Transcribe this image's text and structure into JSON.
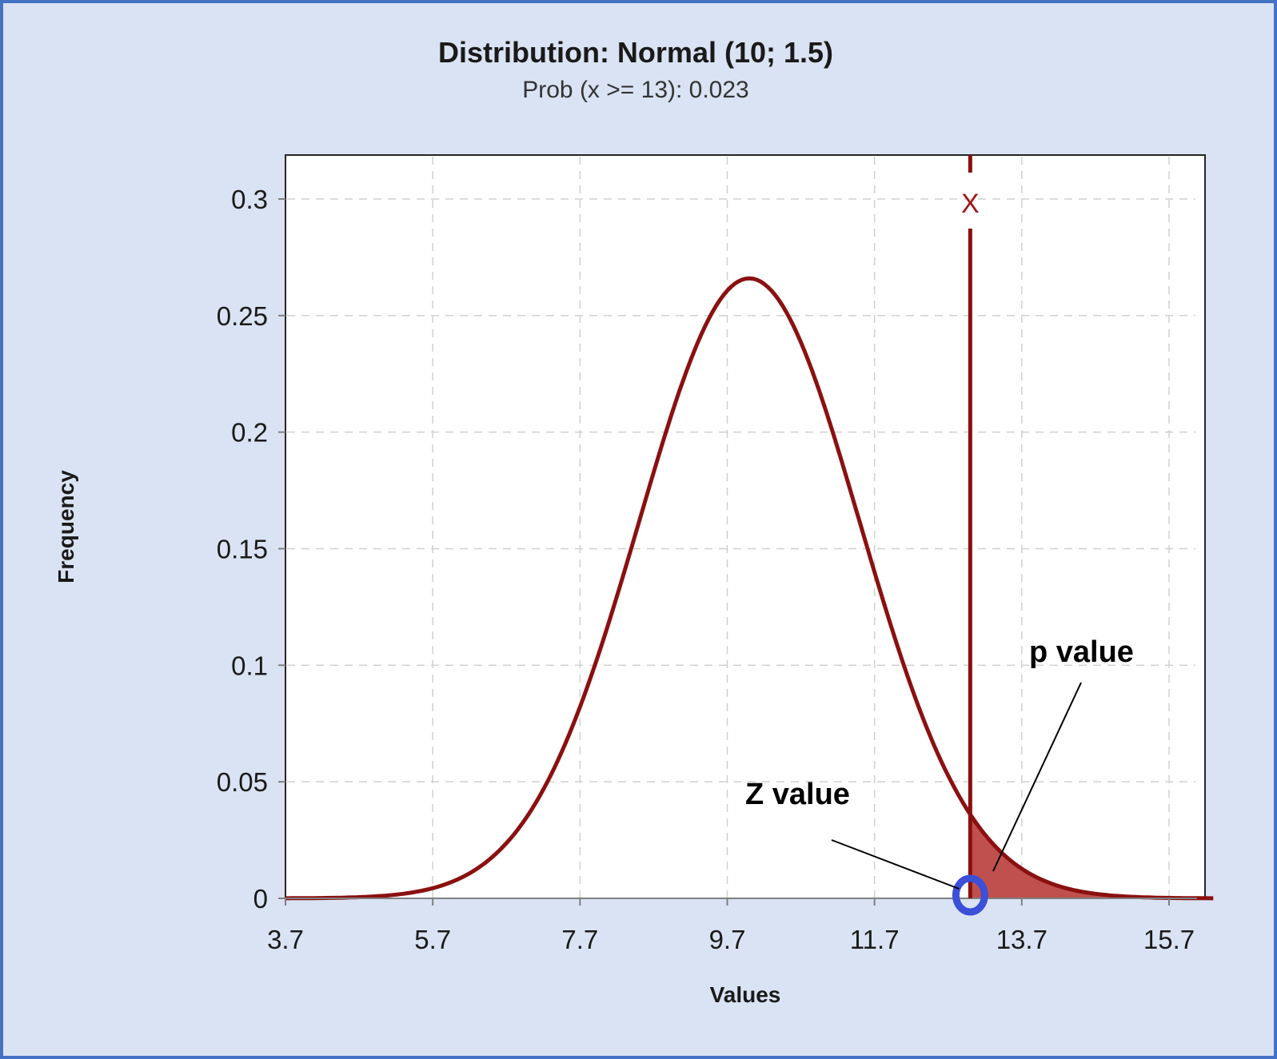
{
  "chart_data": {
    "type": "line",
    "title": "Distribution:  Normal (10; 1.5)",
    "subtitle": "Prob (x >= 13): 0.023",
    "xlabel": "Values",
    "ylabel": "Frequency",
    "distribution": {
      "mean": 10,
      "sd": 1.5
    },
    "xlim": [
      3.7,
      16.3
    ],
    "ylim": [
      0,
      0.32
    ],
    "x_ticks": [
      3.7,
      5.7,
      7.7,
      9.7,
      11.7,
      13.7,
      15.7
    ],
    "x_tick_labels": [
      "3.7",
      "5.7",
      "7.7",
      "9.7",
      "11.7",
      "13.7",
      "15.7"
    ],
    "y_ticks": [
      0,
      0.05,
      0.1,
      0.15,
      0.2,
      0.25,
      0.3
    ],
    "y_tick_labels": [
      "0",
      "0.05",
      "0.1",
      "0.15",
      "0.2",
      "0.25",
      "0.3"
    ],
    "grid": true,
    "series": [
      {
        "x": [
          3.7,
          4.5,
          5.0,
          5.5,
          6.0,
          6.5,
          7.0,
          7.5,
          8.0,
          8.5,
          9.0,
          9.5,
          10.0,
          10.5,
          11.0,
          11.5,
          12.0,
          12.5,
          13.0,
          13.5,
          14.0,
          14.5,
          15.0,
          15.5,
          16.3
        ],
        "y": [
          0.0,
          0.0002,
          0.001,
          0.0036,
          0.0076,
          0.0209,
          0.036,
          0.0665,
          0.1093,
          0.1613,
          0.213,
          0.2516,
          0.266,
          0.2516,
          0.213,
          0.1613,
          0.1093,
          0.0665,
          0.036,
          0.0175,
          0.0076,
          0.003,
          0.001,
          0.0003,
          0.0
        ]
      }
    ],
    "marker_x": 13,
    "marker_label": "X",
    "shaded_region": {
      "from": 13,
      "to": 16.3,
      "probability": 0.023
    },
    "annotations": [
      {
        "text": "Z value",
        "target_x": 13,
        "target_y": 0
      },
      {
        "text": "p value",
        "target_x": 13.2,
        "target_y": 0.0175
      }
    ],
    "colors": {
      "curve": "#8b1010",
      "marker_line": "#8b1010",
      "fill": "#c0504d",
      "circle": "#3b4fd8",
      "background": "#dae3f3",
      "border": "#4472c4"
    }
  }
}
